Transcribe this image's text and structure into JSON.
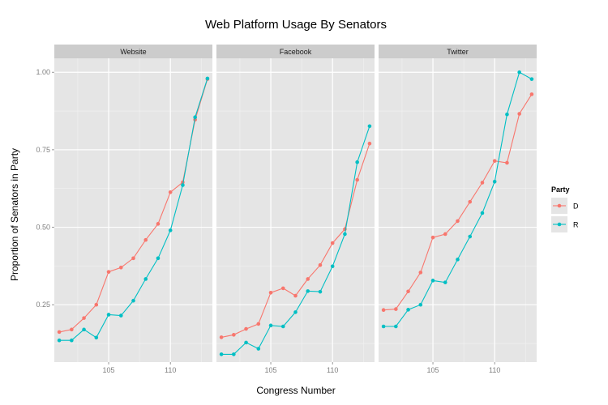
{
  "chart_data": {
    "type": "line",
    "title": "Web Platform Usage By Senators",
    "xlabel": "Congress Number",
    "ylabel": "Proportion of Senators in Party",
    "xlim": [
      100.6,
      113.4
    ],
    "ylim": [
      0.065,
      1.045
    ],
    "x_ticks": [
      105,
      110
    ],
    "x_tick_labels": [
      "105",
      "110"
    ],
    "y_ticks": [
      0.25,
      0.5,
      0.75,
      1.0
    ],
    "y_tick_labels": [
      "0.25",
      "0.50",
      "0.75",
      "1.00"
    ],
    "grid": true,
    "legend": {
      "title": "Party",
      "position": "right",
      "entries": [
        {
          "label": "D",
          "color": "#F8766D"
        },
        {
          "label": "R",
          "color": "#00BFC4"
        }
      ]
    },
    "colors": {
      "D": "#F8766D",
      "R": "#00BFC4",
      "panel_bg": "#E5E5E5",
      "strip_bg": "#CCCCCC",
      "grid": "#FFFFFF"
    },
    "panels": [
      {
        "name": "Website",
        "series": [
          {
            "name": "D",
            "x": [
              101,
              102,
              103,
              104,
              105,
              106,
              107,
              108,
              109,
              110,
              111,
              112,
              113
            ],
            "y": [
              0.162,
              0.17,
              0.207,
              0.25,
              0.356,
              0.37,
              0.4,
              0.459,
              0.511,
              0.613,
              0.645,
              0.847,
              0.978
            ]
          },
          {
            "name": "R",
            "x": [
              101,
              102,
              103,
              104,
              105,
              106,
              107,
              108,
              109,
              110,
              111,
              112,
              113
            ],
            "y": [
              0.135,
              0.135,
              0.17,
              0.144,
              0.218,
              0.215,
              0.263,
              0.333,
              0.4,
              0.49,
              0.636,
              0.855,
              0.98
            ]
          }
        ]
      },
      {
        "name": "Facebook",
        "series": [
          {
            "name": "D",
            "x": [
              101,
              102,
              103,
              104,
              105,
              106,
              107,
              108,
              109,
              110,
              111,
              112,
              113
            ],
            "y": [
              0.145,
              0.153,
              0.172,
              0.188,
              0.289,
              0.303,
              0.279,
              0.333,
              0.378,
              0.449,
              0.494,
              0.653,
              0.77
            ]
          },
          {
            "name": "R",
            "x": [
              101,
              102,
              103,
              104,
              105,
              106,
              107,
              108,
              109,
              110,
              111,
              112,
              113
            ],
            "y": [
              0.09,
              0.09,
              0.128,
              0.108,
              0.183,
              0.18,
              0.226,
              0.294,
              0.292,
              0.374,
              0.478,
              0.71,
              0.826
            ]
          }
        ]
      },
      {
        "name": "Twitter",
        "series": [
          {
            "name": "D",
            "x": [
              101,
              102,
              103,
              104,
              105,
              106,
              107,
              108,
              109,
              110,
              111,
              112,
              113
            ],
            "y": [
              0.233,
              0.236,
              0.293,
              0.354,
              0.467,
              0.478,
              0.52,
              0.582,
              0.644,
              0.714,
              0.708,
              0.866,
              0.929
            ]
          },
          {
            "name": "R",
            "x": [
              101,
              102,
              103,
              104,
              105,
              106,
              107,
              108,
              109,
              110,
              111,
              112,
              113
            ],
            "y": [
              0.18,
              0.18,
              0.234,
              0.25,
              0.328,
              0.322,
              0.396,
              0.47,
              0.546,
              0.647,
              0.864,
              1.0,
              0.978
            ]
          }
        ]
      }
    ]
  }
}
